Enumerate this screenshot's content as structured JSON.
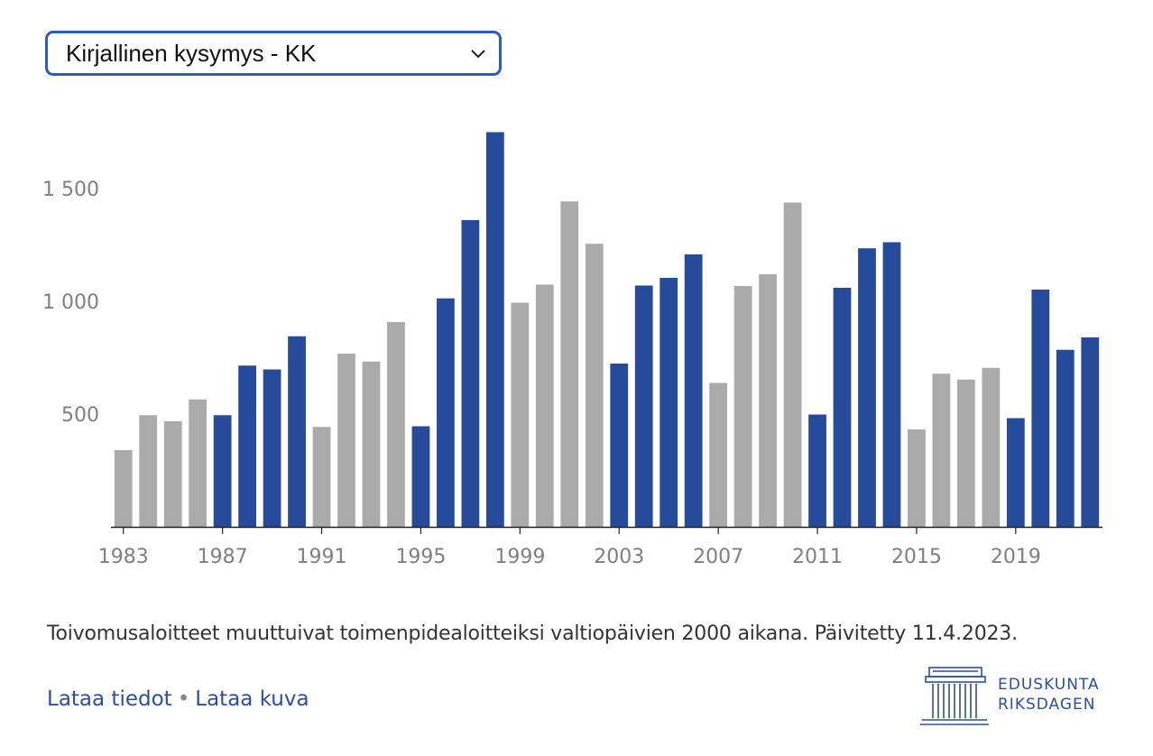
{
  "selector": {
    "value": "Kirjallinen kysymys - KK"
  },
  "chart_data": {
    "type": "bar",
    "categories": [
      1983,
      1984,
      1985,
      1986,
      1987,
      1988,
      1989,
      1990,
      1991,
      1992,
      1993,
      1994,
      1995,
      1996,
      1997,
      1998,
      1999,
      2000,
      2001,
      2002,
      2003,
      2004,
      2005,
      2006,
      2007,
      2008,
      2009,
      2010,
      2011,
      2012,
      2013,
      2014,
      2015,
      2016,
      2017,
      2018,
      2019,
      2020,
      2021,
      2022
    ],
    "values": [
      340,
      495,
      468,
      565,
      495,
      715,
      698,
      845,
      443,
      768,
      733,
      908,
      446,
      1013,
      1360,
      1750,
      994,
      1074,
      1443,
      1255,
      724,
      1070,
      1104,
      1208,
      638,
      1068,
      1120,
      1438,
      498,
      1060,
      1235,
      1262,
      432,
      679,
      653,
      705,
      482,
      1052,
      785,
      840
    ],
    "highlight_years": [
      1987,
      1988,
      1989,
      1990,
      1995,
      1996,
      1997,
      1998,
      2003,
      2004,
      2005,
      2006,
      2011,
      2012,
      2013,
      2014,
      2019,
      2020,
      2021,
      2022
    ],
    "x_tick_labels": [
      "1983",
      "1987",
      "1991",
      "1995",
      "1999",
      "2003",
      "2007",
      "2011",
      "2015",
      "2019"
    ],
    "y_tick_values": [
      500,
      1000,
      1500
    ],
    "y_tick_labels": [
      "500",
      "1 000",
      "1 500"
    ],
    "ylim": [
      0,
      1800
    ],
    "title": "",
    "xlabel": "",
    "ylabel": "",
    "colors": {
      "highlight": "#264b9a",
      "base": "#aaaaaa",
      "axis_text": "#7f7f7f"
    }
  },
  "footer": {
    "note": "Toivomusaloitteet muuttuivat toimenpidealoitteiksi valtiopäivien 2000 aikana. Päivitetty 11.4.2023.",
    "download_data": "Lataa tiedot",
    "separator": "•",
    "download_image": "Lataa kuva"
  },
  "logo": {
    "line1": "EDUSKUNTA",
    "line2": "RIKSDAGEN"
  }
}
